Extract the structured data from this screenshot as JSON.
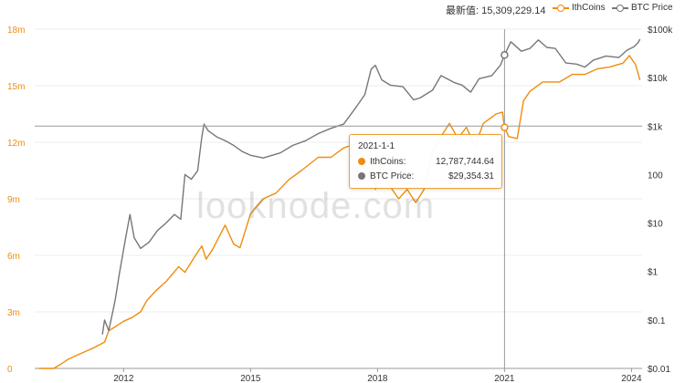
{
  "header": {
    "latest_label": "最新值:",
    "latest_value": "15,309,229.14"
  },
  "legend": [
    {
      "label": "IthCoins",
      "color": "#f08c0c"
    },
    {
      "label": "BTC Price",
      "color": "#777777"
    }
  ],
  "watermark": "looknode.com",
  "tooltip": {
    "date": "2021-1-1",
    "rows": [
      {
        "label": "IthCoins:",
        "value": "12,787,744.64",
        "color": "#f08c0c"
      },
      {
        "label": "BTC Price:",
        "value": "$29,354.31",
        "color": "#777777"
      }
    ]
  },
  "chart_data": {
    "type": "line",
    "title": "",
    "x_ticks": [
      "2012",
      "2015",
      "2018",
      "2021",
      "2024"
    ],
    "x_range": [
      2009.9,
      2024.25
    ],
    "y_left": {
      "label": "",
      "ticks": [
        "0",
        "3m",
        "6m",
        "9m",
        "12m",
        "15m",
        "18m"
      ],
      "range": [
        0,
        18000000
      ],
      "color": "#f08c0c"
    },
    "y_right": {
      "label": "",
      "scale": "log",
      "ticks": [
        "$0.01",
        "$0.1",
        "$1",
        "$10",
        "100",
        "$1k",
        "$10k",
        "$100k"
      ],
      "range": [
        0.01,
        100000
      ]
    },
    "grid": true,
    "crosshair": {
      "x": 2021.0,
      "y_price": 1000
    },
    "series": [
      {
        "name": "IthCoins",
        "axis": "left",
        "color": "#f08c0c",
        "points": [
          [
            2010.0,
            0
          ],
          [
            2010.35,
            0
          ],
          [
            2010.5,
            200000
          ],
          [
            2010.7,
            500000
          ],
          [
            2010.9,
            700000
          ],
          [
            2011.1,
            900000
          ],
          [
            2011.3,
            1100000
          ],
          [
            2011.55,
            1400000
          ],
          [
            2011.65,
            2000000
          ],
          [
            2011.8,
            2200000
          ],
          [
            2012.0,
            2500000
          ],
          [
            2012.2,
            2700000
          ],
          [
            2012.4,
            3000000
          ],
          [
            2012.55,
            3600000
          ],
          [
            2012.75,
            4100000
          ],
          [
            2013.0,
            4600000
          ],
          [
            2013.3,
            5400000
          ],
          [
            2013.45,
            5100000
          ],
          [
            2013.7,
            6000000
          ],
          [
            2013.85,
            6500000
          ],
          [
            2013.95,
            5800000
          ],
          [
            2014.1,
            6300000
          ],
          [
            2014.4,
            7600000
          ],
          [
            2014.6,
            6600000
          ],
          [
            2014.75,
            6400000
          ],
          [
            2015.0,
            8200000
          ],
          [
            2015.3,
            9000000
          ],
          [
            2015.6,
            9300000
          ],
          [
            2015.9,
            10000000
          ],
          [
            2016.2,
            10500000
          ],
          [
            2016.6,
            11200000
          ],
          [
            2016.9,
            11200000
          ],
          [
            2017.2,
            11700000
          ],
          [
            2017.6,
            12000000
          ],
          [
            2017.8,
            12200000
          ],
          [
            2017.95,
            9500000
          ],
          [
            2018.1,
            10800000
          ],
          [
            2018.25,
            9800000
          ],
          [
            2018.5,
            9000000
          ],
          [
            2018.7,
            9500000
          ],
          [
            2018.9,
            8800000
          ],
          [
            2019.1,
            9500000
          ],
          [
            2019.3,
            11500000
          ],
          [
            2019.5,
            12300000
          ],
          [
            2019.7,
            13000000
          ],
          [
            2019.9,
            12200000
          ],
          [
            2020.1,
            12800000
          ],
          [
            2020.3,
            11800000
          ],
          [
            2020.5,
            13000000
          ],
          [
            2020.8,
            13500000
          ],
          [
            2020.95,
            13600000
          ],
          [
            2021.0,
            12787744
          ],
          [
            2021.1,
            12300000
          ],
          [
            2021.3,
            12200000
          ],
          [
            2021.45,
            14200000
          ],
          [
            2021.6,
            14700000
          ],
          [
            2021.9,
            15200000
          ],
          [
            2022.3,
            15200000
          ],
          [
            2022.6,
            15600000
          ],
          [
            2022.9,
            15600000
          ],
          [
            2023.2,
            15900000
          ],
          [
            2023.5,
            16000000
          ],
          [
            2023.8,
            16200000
          ],
          [
            2023.95,
            16600000
          ],
          [
            2024.1,
            16100000
          ],
          [
            2024.2,
            15300000
          ]
        ]
      },
      {
        "name": "BTC Price",
        "axis": "right",
        "color": "#777777",
        "points": [
          [
            2011.5,
            0.05
          ],
          [
            2011.55,
            0.1
          ],
          [
            2011.65,
            0.06
          ],
          [
            2011.8,
            0.25
          ],
          [
            2011.9,
            0.9
          ],
          [
            2012.05,
            5
          ],
          [
            2012.15,
            15
          ],
          [
            2012.25,
            5
          ],
          [
            2012.4,
            3
          ],
          [
            2012.6,
            4
          ],
          [
            2012.8,
            7
          ],
          [
            2013.0,
            10
          ],
          [
            2013.2,
            15
          ],
          [
            2013.35,
            12
          ],
          [
            2013.45,
            100
          ],
          [
            2013.6,
            80
          ],
          [
            2013.75,
            120
          ],
          [
            2013.85,
            600
          ],
          [
            2013.9,
            1100
          ],
          [
            2014.0,
            800
          ],
          [
            2014.2,
            600
          ],
          [
            2014.4,
            500
          ],
          [
            2014.6,
            400
          ],
          [
            2014.8,
            300
          ],
          [
            2015.0,
            250
          ],
          [
            2015.3,
            220
          ],
          [
            2015.7,
            280
          ],
          [
            2016.0,
            400
          ],
          [
            2016.3,
            500
          ],
          [
            2016.6,
            700
          ],
          [
            2016.9,
            900
          ],
          [
            2017.2,
            1100
          ],
          [
            2017.5,
            2500
          ],
          [
            2017.7,
            4500
          ],
          [
            2017.85,
            15000
          ],
          [
            2017.95,
            18000
          ],
          [
            2018.1,
            9000
          ],
          [
            2018.3,
            7000
          ],
          [
            2018.6,
            6500
          ],
          [
            2018.85,
            3500
          ],
          [
            2019.0,
            3800
          ],
          [
            2019.3,
            5500
          ],
          [
            2019.5,
            11000
          ],
          [
            2019.8,
            8000
          ],
          [
            2020.0,
            7000
          ],
          [
            2020.2,
            5000
          ],
          [
            2020.4,
            9500
          ],
          [
            2020.7,
            11000
          ],
          [
            2020.9,
            18000
          ],
          [
            2021.0,
            29354
          ],
          [
            2021.15,
            55000
          ],
          [
            2021.4,
            35000
          ],
          [
            2021.6,
            40000
          ],
          [
            2021.8,
            60000
          ],
          [
            2022.0,
            42000
          ],
          [
            2022.2,
            40000
          ],
          [
            2022.45,
            20000
          ],
          [
            2022.7,
            19000
          ],
          [
            2022.9,
            16500
          ],
          [
            2023.1,
            23000
          ],
          [
            2023.4,
            28000
          ],
          [
            2023.7,
            26000
          ],
          [
            2023.9,
            37000
          ],
          [
            2024.05,
            43000
          ],
          [
            2024.15,
            52000
          ],
          [
            2024.2,
            62000
          ]
        ]
      }
    ]
  }
}
